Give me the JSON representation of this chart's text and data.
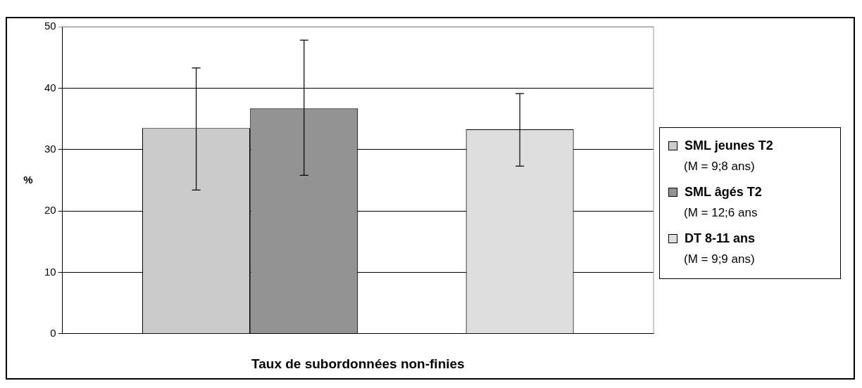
{
  "chart_data": {
    "type": "bar",
    "xlabel": "Taux de subordonnées non-finies",
    "ylabel": "%",
    "categories": [
      null
    ],
    "series": [
      {
        "name": "SML jeunes T2\n(M = 9;8 ans)",
        "color": "#cbcbcb",
        "values": [
          33.5
        ],
        "errors": [
          [
            23.4,
            43.3
          ]
        ]
      },
      {
        "name": "SML âgés T2\n(M = 12;6 ans",
        "color": "#939393",
        "values": [
          36.7
        ],
        "errors": [
          [
            25.8,
            47.8
          ]
        ]
      },
      {
        "color": "#ffffff",
        "values": [
          null
        ]
      },
      {
        "name": "DT 8-11 ans\n(M = 9;9 ans)",
        "color": "#dedede",
        "values": [
          33.3
        ],
        "errors": [
          [
            27.3,
            39.1
          ]
        ]
      }
    ],
    "ylim": [
      0,
      50
    ],
    "yticks": [
      0,
      10,
      20,
      30,
      40,
      50
    ],
    "grid": "y",
    "legend": "right"
  }
}
